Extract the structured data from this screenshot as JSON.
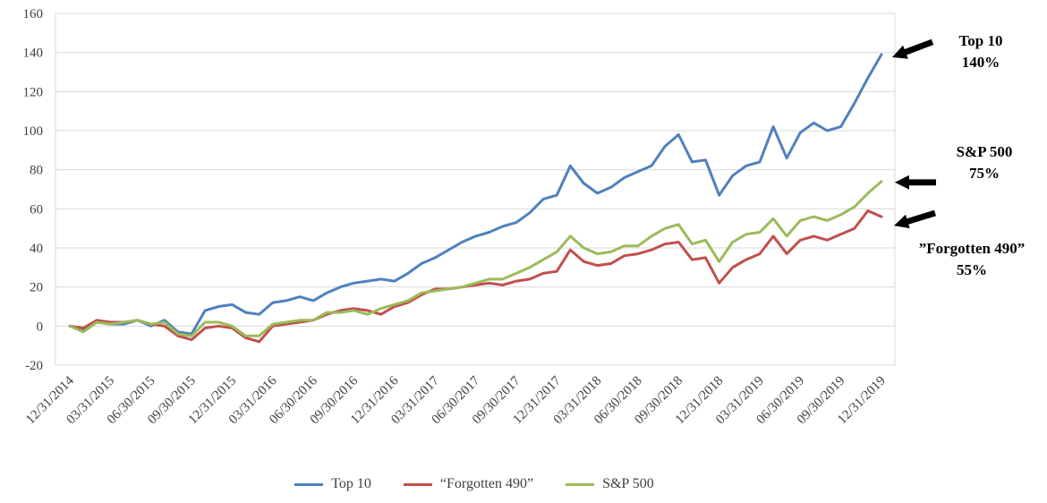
{
  "chart_data": {
    "type": "line",
    "title": "",
    "xlabel": "",
    "ylabel": "",
    "ylim": [
      -20,
      160
    ],
    "y_ticks": [
      160,
      140,
      120,
      100,
      80,
      60,
      40,
      20,
      0,
      -20
    ],
    "grid": true,
    "legend_position": "bottom",
    "x_labels": [
      "12/31/2014",
      "03/31/2015",
      "06/30/2015",
      "09/30/2015",
      "12/31/2015",
      "03/31/2016",
      "06/30/2016",
      "09/30/2016",
      "12/31/2016",
      "03/31/2017",
      "06/30/2017",
      "09/30/2017",
      "12/31/2017",
      "03/31/2018",
      "06/30/2018",
      "09/30/2018",
      "12/31/2018",
      "03/31/2019",
      "06/30/2019",
      "09/30/2019",
      "12/31/2019"
    ],
    "points_per_label_interval": 3,
    "series": [
      {
        "name": "Top 10",
        "color": "#4F81BD",
        "values": [
          0,
          -2,
          2,
          1,
          1,
          3,
          0,
          3,
          -3,
          -4,
          8,
          10,
          11,
          7,
          6,
          12,
          13,
          15,
          13,
          17,
          20,
          22,
          23,
          24,
          23,
          27,
          32,
          35,
          39,
          43,
          46,
          48,
          51,
          53,
          58,
          65,
          67,
          82,
          73,
          68,
          71,
          76,
          79,
          82,
          92,
          98,
          84,
          85,
          67,
          77,
          82,
          84,
          102,
          86,
          99,
          104,
          100,
          102,
          114,
          127,
          139
        ]
      },
      {
        "name": "“Forgotten 490”",
        "color": "#C0504D",
        "values": [
          0,
          -1,
          3,
          2,
          2,
          3,
          1,
          0,
          -5,
          -7,
          -1,
          0,
          -1,
          -6,
          -8,
          0,
          1,
          2,
          3,
          6,
          8,
          9,
          8,
          6,
          10,
          12,
          16,
          19,
          19,
          20,
          21,
          22,
          21,
          23,
          24,
          27,
          28,
          39,
          33,
          31,
          32,
          36,
          37,
          39,
          42,
          43,
          34,
          35,
          22,
          30,
          34,
          37,
          46,
          37,
          44,
          46,
          44,
          47,
          50,
          59,
          56
        ]
      },
      {
        "name": "S&P 500",
        "color": "#9BBB59",
        "values": [
          0,
          -3,
          2,
          1,
          2,
          3,
          1,
          2,
          -4,
          -5,
          2,
          2,
          0,
          -5,
          -5,
          1,
          2,
          3,
          3,
          7,
          7,
          8,
          6,
          9,
          11,
          13,
          17,
          18,
          19,
          20,
          22,
          24,
          24,
          27,
          30,
          34,
          38,
          46,
          40,
          37,
          38,
          41,
          41,
          46,
          50,
          52,
          42,
          44,
          33,
          43,
          47,
          48,
          55,
          46,
          54,
          56,
          54,
          57,
          61,
          68,
          74
        ]
      }
    ],
    "annotations": [
      {
        "line1": "Top 10",
        "line2": "140%"
      },
      {
        "line1": "S&P 500",
        "line2": "75%"
      },
      {
        "line1": "”Forgotten 490”",
        "line2": "55%"
      }
    ]
  }
}
